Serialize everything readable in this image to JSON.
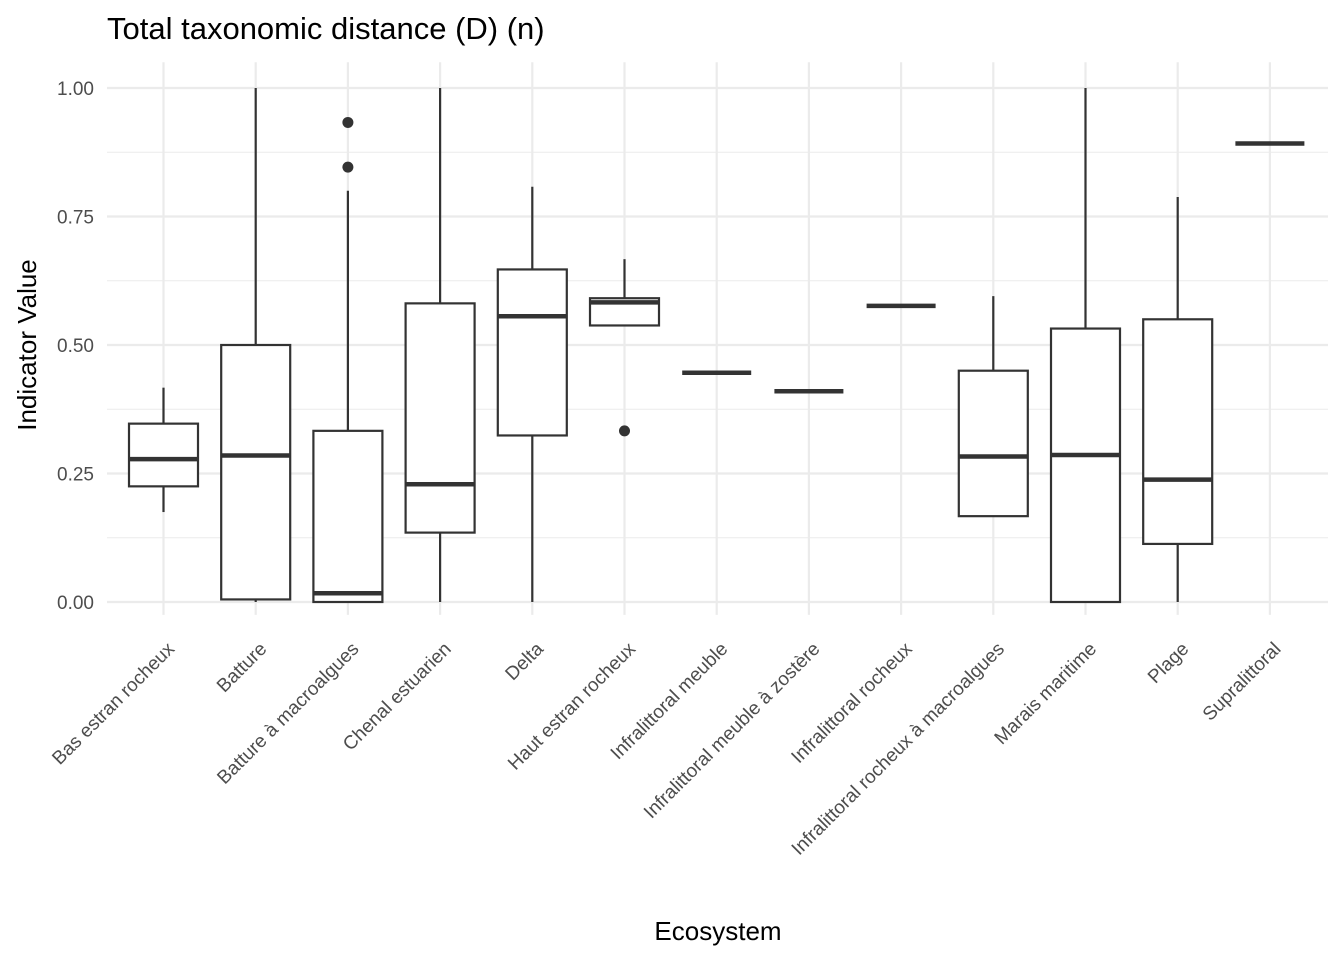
{
  "chart_data": {
    "type": "box",
    "title": "Total taxonomic distance (D) (n)",
    "xlabel": "Ecosystem",
    "ylabel": "Indicator Value",
    "ylim": [
      -0.025,
      1.05
    ],
    "yticks": [
      "0.00",
      "0.25",
      "0.50",
      "0.75",
      "1.00"
    ],
    "ytick_values": [
      0,
      0.25,
      0.5,
      0.75,
      1.0
    ],
    "grid": true,
    "legend": "none",
    "colors": {
      "box_line": "#333333",
      "box_fill": "#ffffff",
      "grid": "#ebebeb",
      "tick_text": "#4d4d4d"
    },
    "categories": [
      "Bas estran rocheux",
      "Batture",
      "Batture à macroalgues",
      "Chenal estuarien",
      "Delta",
      "Haut estran rocheux",
      "Infralittoral meuble",
      "Infralittoral meuble à zostère",
      "Infralittoral rocheux",
      "Infralittoral rocheux à macroalgues",
      "Marais maritime",
      "Plage",
      "Supralittoral"
    ],
    "boxes": [
      {
        "min": 0.175,
        "q1": 0.225,
        "median": 0.278,
        "q3": 0.347,
        "max": 0.417,
        "outliers": []
      },
      {
        "min": 0.0,
        "q1": 0.005,
        "median": 0.285,
        "q3": 0.5,
        "max": 1.0,
        "outliers": []
      },
      {
        "min": 0.0,
        "q1": 0.0,
        "median": 0.017,
        "q3": 0.333,
        "max": 0.8,
        "outliers": [
          0.933,
          0.846
        ]
      },
      {
        "min": 0.0,
        "q1": 0.135,
        "median": 0.229,
        "q3": 0.581,
        "max": 1.0,
        "outliers": []
      },
      {
        "min": 0.0,
        "q1": 0.324,
        "median": 0.556,
        "q3": 0.647,
        "max": 0.808,
        "outliers": []
      },
      {
        "min": 0.538,
        "q1": 0.538,
        "median": 0.583,
        "q3": 0.591,
        "max": 0.667,
        "outliers": [
          0.333
        ]
      },
      {
        "min": 0.446,
        "q1": 0.446,
        "median": 0.446,
        "q3": 0.446,
        "max": 0.446,
        "outliers": []
      },
      {
        "min": 0.41,
        "q1": 0.41,
        "median": 0.41,
        "q3": 0.41,
        "max": 0.41,
        "outliers": []
      },
      {
        "min": 0.576,
        "q1": 0.576,
        "median": 0.576,
        "q3": 0.576,
        "max": 0.576,
        "outliers": []
      },
      {
        "min": 0.167,
        "q1": 0.167,
        "median": 0.283,
        "q3": 0.45,
        "max": 0.595,
        "outliers": []
      },
      {
        "min": 0.0,
        "q1": 0.0,
        "median": 0.286,
        "q3": 0.532,
        "max": 1.0,
        "outliers": []
      },
      {
        "min": 0.0,
        "q1": 0.113,
        "median": 0.238,
        "q3": 0.55,
        "max": 0.788,
        "outliers": []
      },
      {
        "min": 0.892,
        "q1": 0.892,
        "median": 0.892,
        "q3": 0.892,
        "max": 0.892,
        "outliers": []
      }
    ]
  }
}
